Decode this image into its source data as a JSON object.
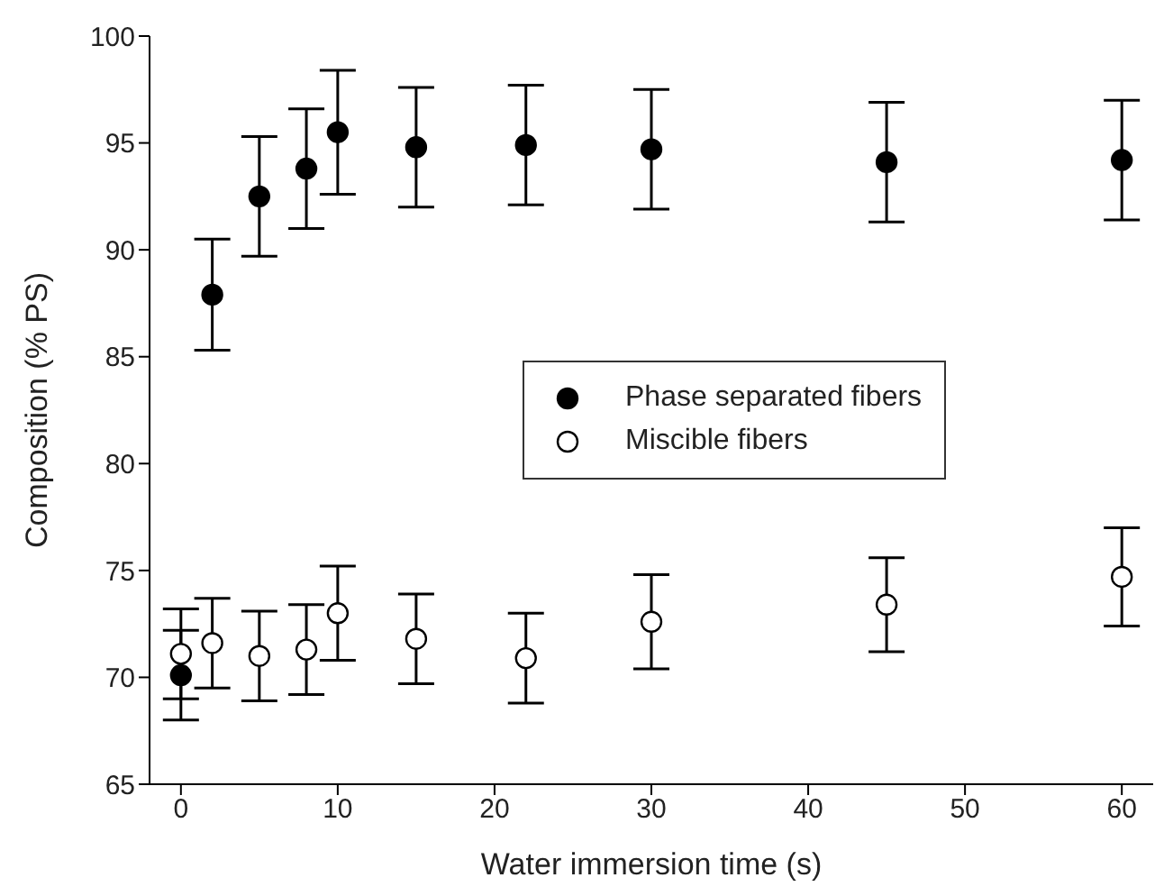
{
  "chart_data": {
    "type": "scatter",
    "xlabel": "Water immersion time (s)",
    "ylabel": "Composition (% PS)",
    "x": [
      0,
      2,
      5,
      8,
      10,
      15,
      22,
      30,
      45,
      60
    ],
    "series": [
      {
        "name": "Phase separated fibers",
        "color": "#000000",
        "values": [
          70.1,
          87.9,
          92.5,
          93.8,
          95.5,
          94.8,
          94.9,
          94.7,
          94.1,
          94.2
        ],
        "errors": [
          2.1,
          2.6,
          2.8,
          2.8,
          2.9,
          2.8,
          2.8,
          2.8,
          2.8,
          2.8
        ]
      },
      {
        "name": "Miscible fibers",
        "color": "#000000",
        "values": [
          71.1,
          71.6,
          71.0,
          71.3,
          73.0,
          71.8,
          70.9,
          72.6,
          73.4,
          74.7
        ],
        "errors": [
          2.1,
          2.1,
          2.1,
          2.1,
          2.2,
          2.1,
          2.1,
          2.2,
          2.2,
          2.3
        ]
      }
    ],
    "xlim": [
      -2,
      62
    ],
    "xticks": [
      0,
      10,
      20,
      30,
      40,
      50,
      60
    ],
    "ylim": [
      65,
      100
    ],
    "yticks": [
      65,
      70,
      75,
      80,
      85,
      90,
      95,
      100
    ],
    "marker": "circle",
    "legend": "right",
    "grid": false
  }
}
